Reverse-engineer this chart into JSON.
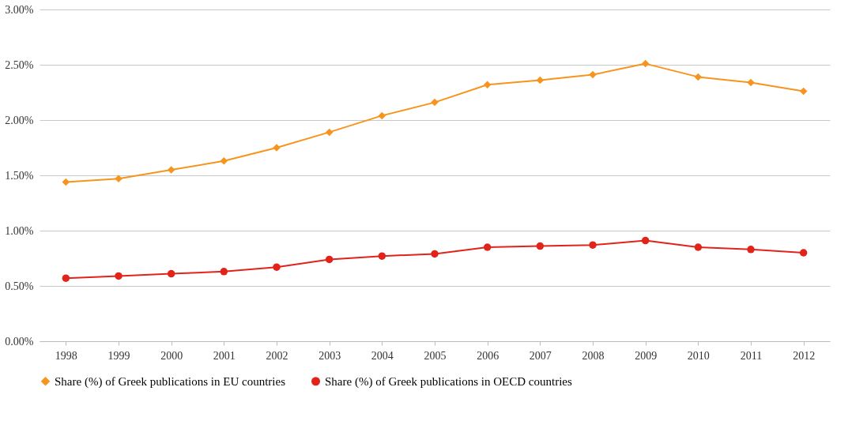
{
  "chart_data": {
    "type": "line",
    "categories": [
      "1998",
      "1999",
      "2000",
      "2001",
      "2002",
      "2003",
      "2004",
      "2005",
      "2006",
      "2007",
      "2008",
      "2009",
      "2010",
      "2011",
      "2012"
    ],
    "series": [
      {
        "name": "Share (%) of Greek publications in EU countries",
        "color": "#f7941d",
        "marker": "diamond",
        "values": [
          1.44,
          1.47,
          1.55,
          1.63,
          1.75,
          1.89,
          2.04,
          2.16,
          2.32,
          2.36,
          2.41,
          2.51,
          2.39,
          2.34,
          2.26
        ]
      },
      {
        "name": "Share (%) of Greek publications in OECD countries",
        "color": "#e2231a",
        "marker": "circle",
        "values": [
          0.57,
          0.59,
          0.61,
          0.63,
          0.67,
          0.74,
          0.77,
          0.79,
          0.85,
          0.86,
          0.87,
          0.91,
          0.85,
          0.83,
          0.8
        ]
      }
    ],
    "ylim": [
      0,
      3
    ],
    "yticks": [
      {
        "value": 0,
        "label": "0.00%"
      },
      {
        "value": 0.5,
        "label": "0.50%"
      },
      {
        "value": 1,
        "label": "1.00%"
      },
      {
        "value": 1.5,
        "label": "1.50%"
      },
      {
        "value": 2,
        "label": "2.00%"
      },
      {
        "value": 2.5,
        "label": "2.50%"
      },
      {
        "value": 3,
        "label": "3.00%"
      }
    ],
    "grid": "y",
    "legend": "bottom",
    "line_style": "solid"
  }
}
